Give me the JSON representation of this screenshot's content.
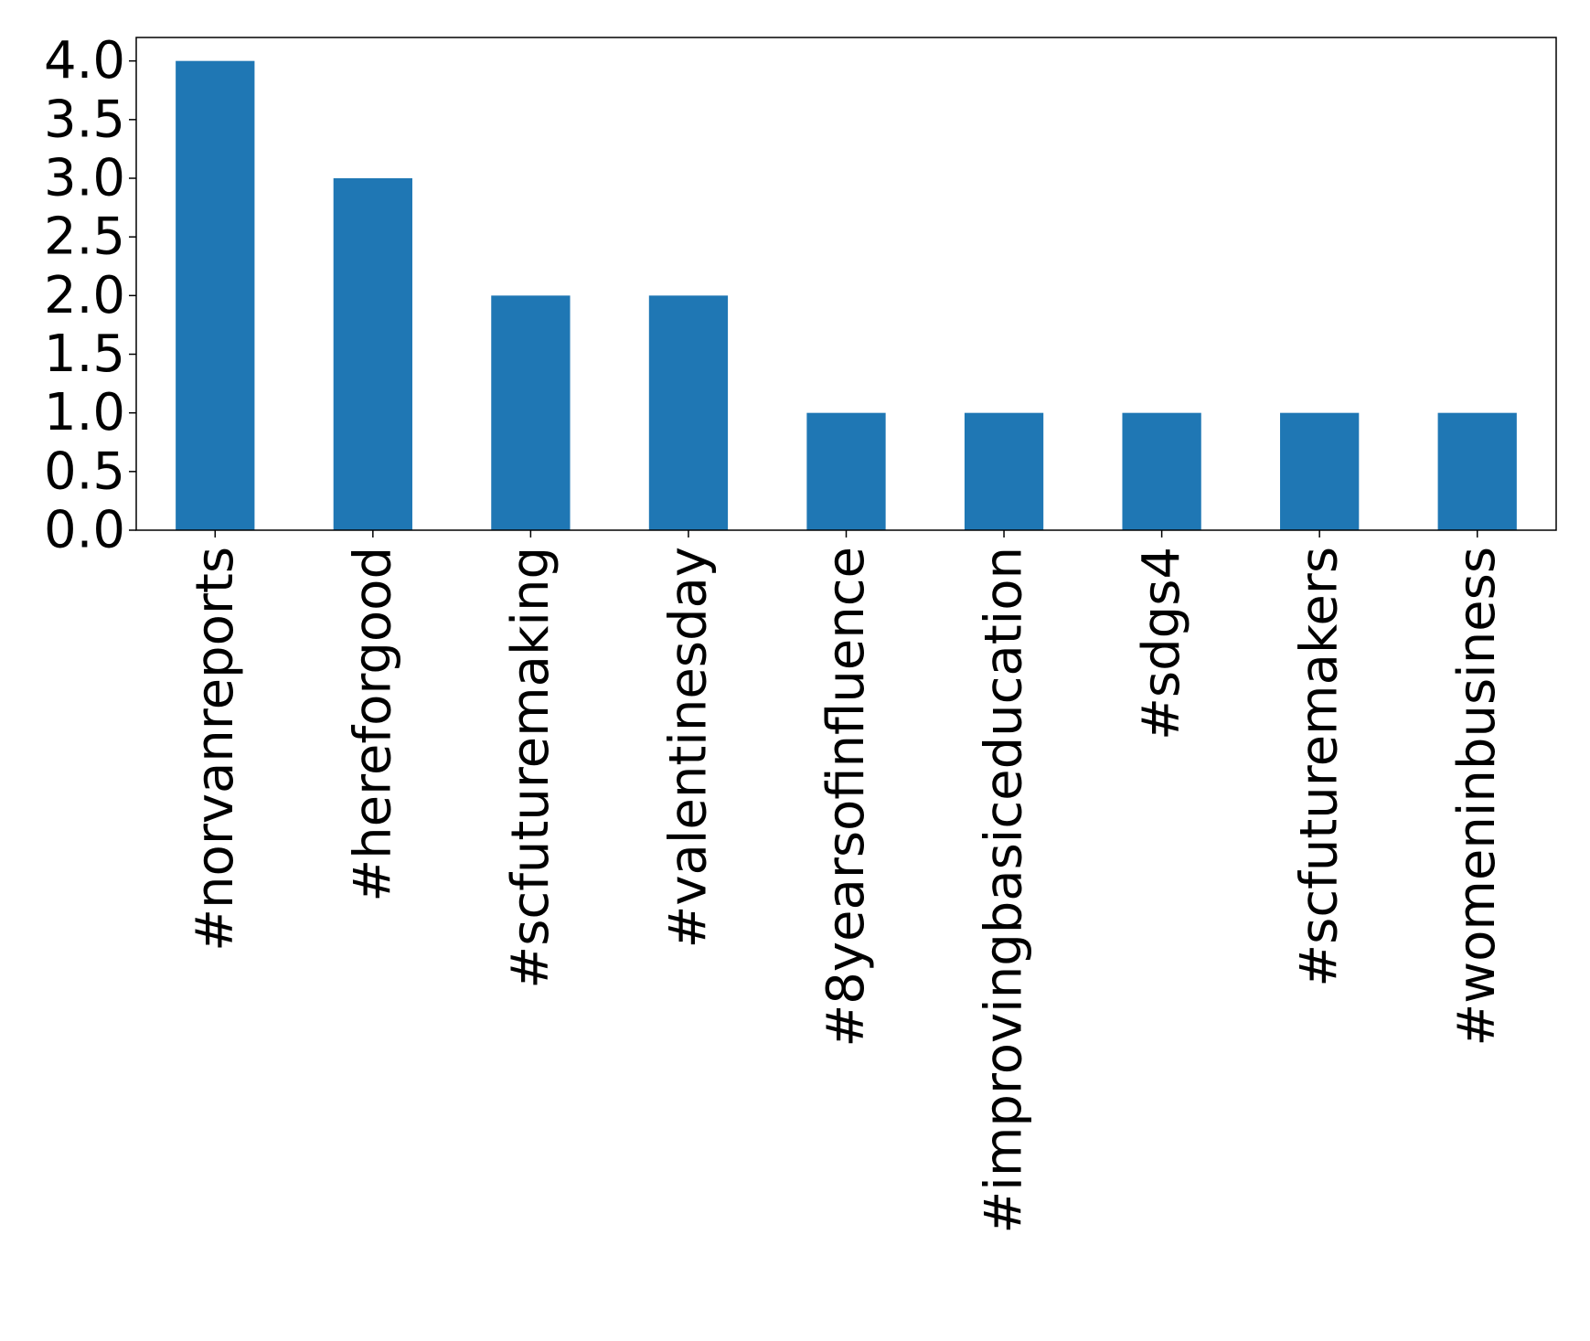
{
  "chart_data": {
    "type": "bar",
    "title": "",
    "xlabel": "",
    "ylabel": "",
    "categories": [
      "#norvanreports",
      "#hereforgood",
      "#scfuturemaking",
      "#valentinesday",
      "#8yearsofinfluence",
      "#improvingbasiceducation",
      "#sdgs4",
      "#scfuturemakers",
      "#womeninbusiness"
    ],
    "values": [
      4,
      3,
      2,
      2,
      1,
      1,
      1,
      1,
      1
    ],
    "ylim": [
      0,
      4.2
    ],
    "yticks": [
      "0.0",
      "0.5",
      "1.0",
      "1.5",
      "2.0",
      "2.5",
      "3.0",
      "3.5",
      "4.0"
    ],
    "bar_color": "#1f77b4",
    "grid": false,
    "legend": "none"
  }
}
